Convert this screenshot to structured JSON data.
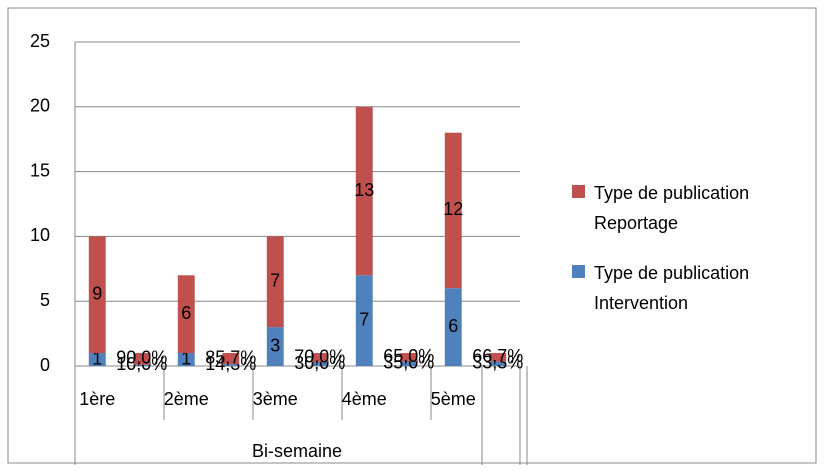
{
  "chart_data": {
    "type": "bar",
    "stacked": true,
    "categories": [
      "1ère",
      null,
      "2ème",
      null,
      "3ème",
      null,
      "4ème",
      null,
      "5ème",
      null
    ],
    "series": [
      {
        "name": "Type de publication Intervention",
        "color": "#4f81bd",
        "values": [
          1,
          0.1,
          1,
          0.143,
          3,
          0.3,
          7,
          0.35,
          6,
          0.333
        ],
        "value_labels": [
          "1",
          "10,0%",
          "1",
          "14,3%",
          "3",
          "30,0%",
          "7",
          "35,0%",
          "6",
          "33,3%"
        ]
      },
      {
        "name": "Type de publication Reportage",
        "color": "#c0504d",
        "values": [
          9,
          0.9,
          6,
          0.857,
          7,
          0.7,
          13,
          0.65,
          12,
          0.667
        ],
        "value_labels": [
          "9",
          "90,0%",
          "6",
          "85,7%",
          "7",
          "70,0%",
          "13",
          "65,0%",
          "12",
          "66,7%"
        ]
      }
    ],
    "xlabel": "Bi-semaine",
    "ylim": [
      0,
      25
    ],
    "yticks": [
      0,
      5,
      10,
      15,
      20,
      25
    ],
    "grid": true,
    "legend": "right"
  }
}
